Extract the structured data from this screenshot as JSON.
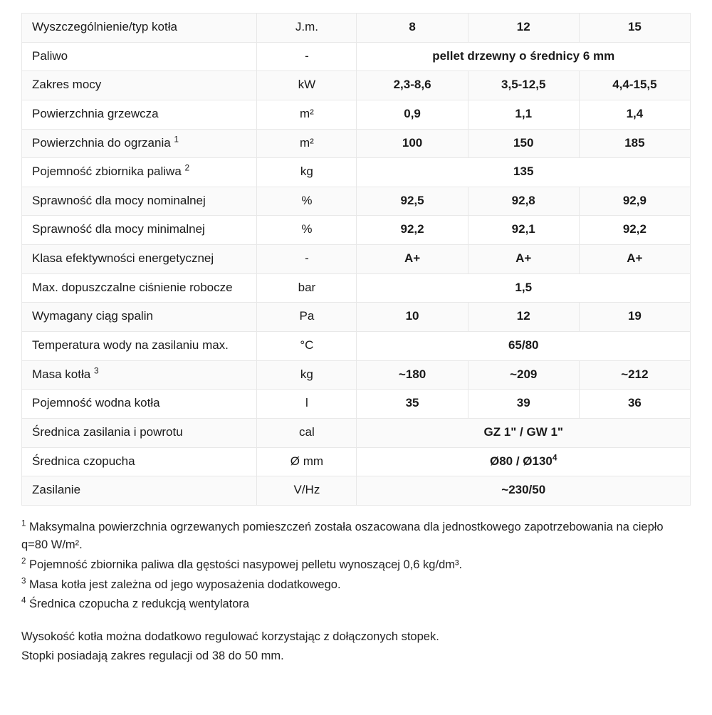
{
  "colors": {
    "row_odd": "#fafafa",
    "row_even": "#ffffff",
    "border": "#e8e8e8",
    "text": "#1a1a1a"
  },
  "table": {
    "header": {
      "label": "Wyszczególnienie/typ kotła",
      "unit": "J.m.",
      "v8": "8",
      "v12": "12",
      "v15": "15"
    },
    "rows": {
      "fuel": {
        "label": "Paliwo",
        "unit": "-",
        "merged": "pellet drzewny o średnicy 6 mm"
      },
      "power": {
        "label": "Zakres mocy",
        "unit": "kW",
        "v8": "2,3-8,6",
        "v12": "3,5-12,5",
        "v15": "4,4-15,5"
      },
      "heatarea": {
        "label": "Powierzchnia grzewcza",
        "unit": "m²",
        "v8": "0,9",
        "v12": "1,1",
        "v15": "1,4"
      },
      "area": {
        "label_html": "Powierzchnia do ogrzania <sup>1</sup>",
        "unit": "m²",
        "v8": "100",
        "v12": "150",
        "v15": "185"
      },
      "tank": {
        "label_html": "Pojemność zbiornika paliwa <sup>2</sup>",
        "unit": "kg",
        "merged": "135"
      },
      "effnom": {
        "label": "Sprawność dla mocy nominalnej",
        "unit": "%",
        "v8": "92,5",
        "v12": "92,8",
        "v15": "92,9"
      },
      "effmin": {
        "label": "Sprawność dla mocy minimalnej",
        "unit": "%",
        "v8": "92,2",
        "v12": "92,1",
        "v15": "92,2"
      },
      "class": {
        "label": "Klasa efektywności energetycznej",
        "unit": "-",
        "v8": "A+",
        "v12": "A+",
        "v15": "A+"
      },
      "press": {
        "label": "Max. dopuszczalne ciśnienie robocze",
        "unit": "bar",
        "merged": "1,5"
      },
      "draft": {
        "label": "Wymagany ciąg spalin",
        "unit": "Pa",
        "v8": "10",
        "v12": "12",
        "v15": "19"
      },
      "temp": {
        "label": "Temperatura wody na zasilaniu max.",
        "unit": "°C",
        "merged": "65/80"
      },
      "mass": {
        "label_html": "Masa kotła <sup>3</sup>",
        "unit": "kg",
        "v8": "~180",
        "v12": "~209",
        "v15": "~212"
      },
      "water": {
        "label": "Pojemność wodna kotła",
        "unit": "l",
        "v8": "35",
        "v12": "39",
        "v15": "36"
      },
      "conn": {
        "label": "Średnica zasilania i powrotu",
        "unit": "cal",
        "merged": "GZ 1\" / GW 1\""
      },
      "flue": {
        "label": "Średnica czopucha",
        "unit": "Ø mm",
        "merged_html": "Ø80 / Ø130<sup>4</sup>"
      },
      "supply": {
        "label": "Zasilanie",
        "unit": "V/Hz",
        "merged": "~230/50"
      }
    }
  },
  "notes": {
    "n1_html": "<sup>1</sup> Maksymalna powierzchnia ogrzewanych pomieszczeń została oszacowana dla jednostkowego zapotrzebowania na ciepło q=80 W/m².",
    "n2_html": "<sup>2</sup> Pojemność zbiornika paliwa dla gęstości nasypowej pelletu wynoszącej 0,6 kg/dm³.",
    "n3_html": "<sup>3</sup> Masa kotła jest zależna od jego wyposażenia dodatkowego.",
    "n4_html": "<sup>4</sup> Średnica czopucha z redukcją wentylatora",
    "extra1": "Wysokość kotła można dodatkowo regulować korzystając z dołączonych stopek.",
    "extra2": "Stopki posiadają zakres regulacji od 38 do 50 mm."
  }
}
